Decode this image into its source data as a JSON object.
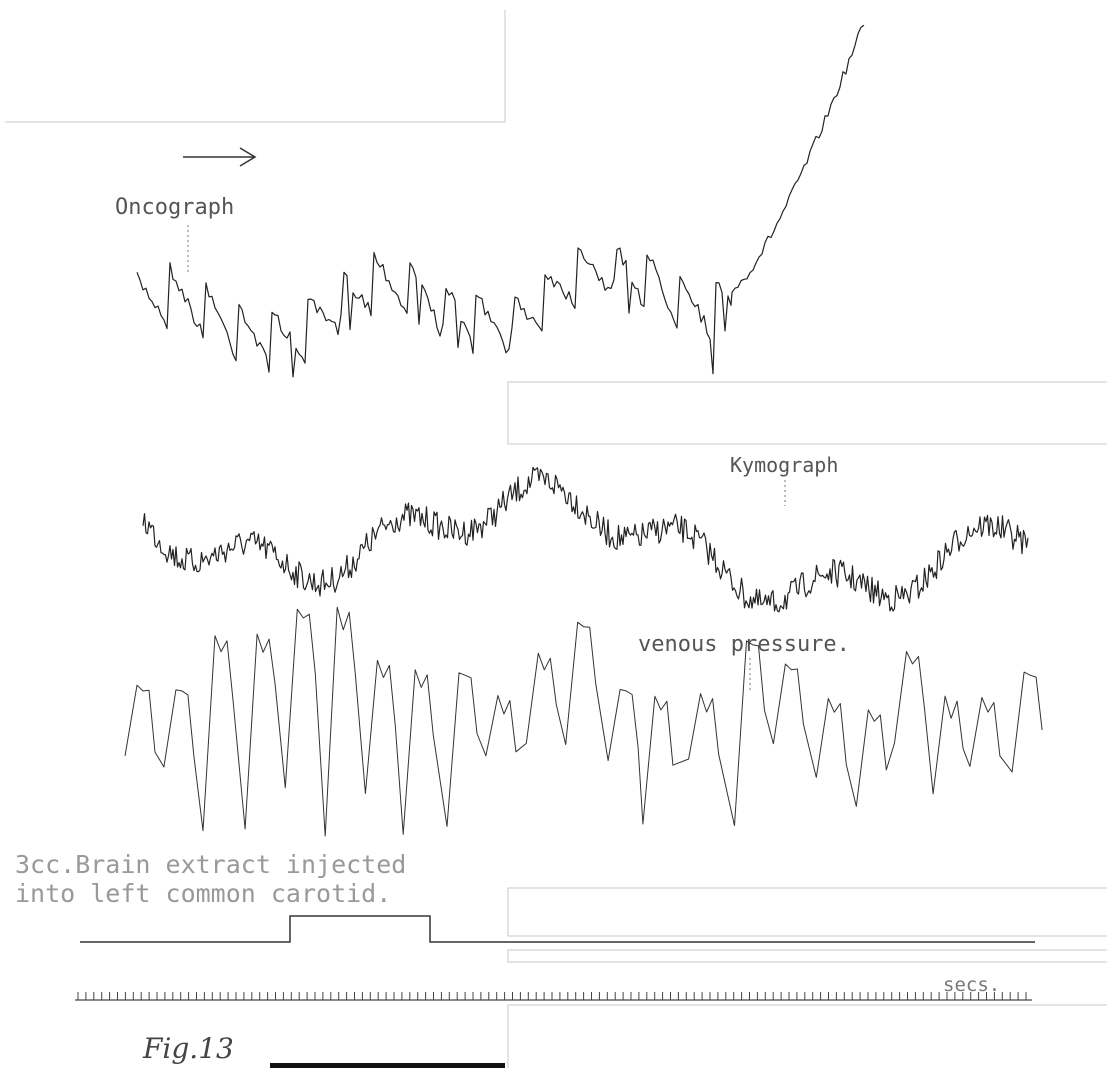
{
  "labels": {
    "oncograph": "Oncograph",
    "kymograph": "Kymograph",
    "venous": "venous pressure.",
    "injection_line1": "3cc.Brain extract injected",
    "injection_line2": "into left common carotid.",
    "time": "secs.",
    "figure": "Fig.13"
  }
}
